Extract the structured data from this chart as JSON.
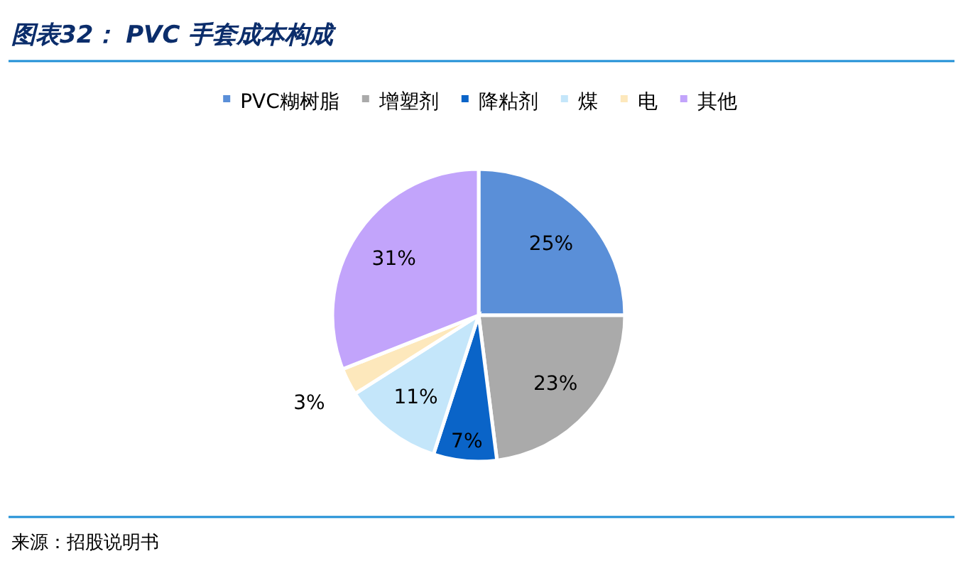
{
  "chart_data": {
    "type": "pie",
    "title": "图表32： PVC 手套成本构成",
    "categories": [
      "PVC糊树脂",
      "增塑剂",
      "降粘剂",
      "煤",
      "电",
      "其他"
    ],
    "values": [
      25,
      23,
      7,
      11,
      3,
      31
    ],
    "colors": [
      "#5a8fd8",
      "#aaaaaa",
      "#0a64c8",
      "#c4e6fa",
      "#fde8bc",
      "#c2a4fb"
    ],
    "value_labels": [
      "25%",
      "23%",
      "7%",
      "11%",
      "3%",
      "31%"
    ],
    "legend": "top",
    "annotations": [
      "来源：招股说明书"
    ]
  }
}
